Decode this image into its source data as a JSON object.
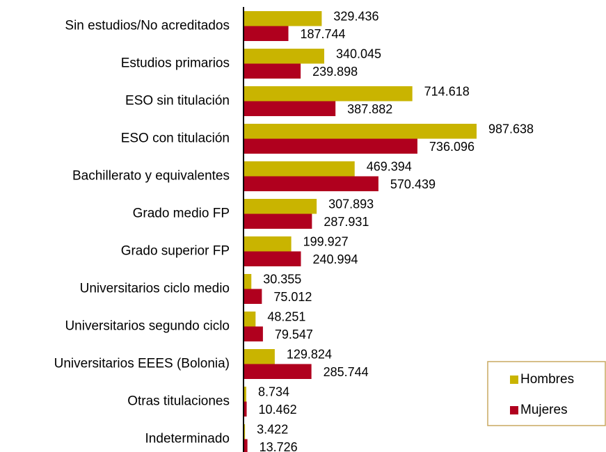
{
  "chart_data": {
    "type": "hbar",
    "categories": [
      "Sin estudios/No acreditados",
      "Estudios primarios",
      "ESO sin titulación",
      "ESO con titulación",
      "Bachillerato y equivalentes",
      "Grado medio FP",
      "Grado superior FP",
      "Universitarios ciclo medio",
      "Universitarios segundo ciclo",
      "Universitarios EEES (Bolonia)",
      "Otras titulaciones",
      "Indeterminado"
    ],
    "series": [
      {
        "name": "Hombres",
        "color": "#c9b400",
        "values": [
          329436,
          340045,
          714618,
          987638,
          469394,
          307893,
          199927,
          30355,
          48251,
          129824,
          8734,
          3422
        ],
        "value_labels": [
          "329.436",
          "340.045",
          "714.618",
          "987.638",
          "469.394",
          "307.893",
          "199.927",
          "30.355",
          "48.251",
          "129.824",
          "8.734",
          "3.422"
        ]
      },
      {
        "name": "Mujeres",
        "color": "#b0001e",
        "values": [
          187744,
          239898,
          387882,
          736096,
          570439,
          287931,
          240994,
          75012,
          79547,
          285744,
          10462,
          13726
        ],
        "value_labels": [
          "187.744",
          "239.898",
          "387.882",
          "736.096",
          "570.439",
          "287.931",
          "240.994",
          "75.012",
          "79.547",
          "285.744",
          "10.462",
          "13.726"
        ]
      }
    ],
    "legend": "lower right"
  }
}
